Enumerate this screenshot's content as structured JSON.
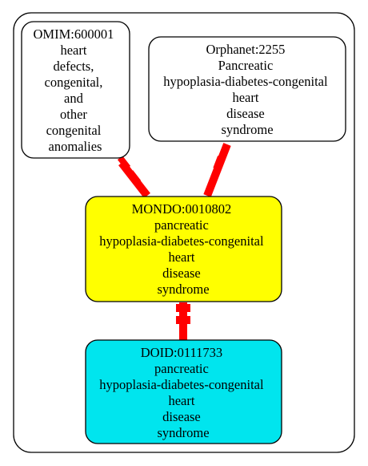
{
  "graph": {
    "nodes": [
      {
        "id": "omim",
        "lines": [
          "OMIM:600001",
          "heart",
          "defects,",
          "congenital,",
          "and",
          "other",
          "congenital",
          "anomalies"
        ],
        "fill": "#ffffff"
      },
      {
        "id": "orphanet",
        "lines": [
          "Orphanet:2255",
          "Pancreatic",
          "hypoplasia-diabetes-congenital",
          "heart",
          "disease",
          "syndrome"
        ],
        "fill": "#ffffff"
      },
      {
        "id": "mondo",
        "lines": [
          "MONDO:0010802",
          "pancreatic",
          "hypoplasia-diabetes-congenital",
          "heart",
          "disease",
          "syndrome"
        ],
        "fill": "#ffff00"
      },
      {
        "id": "doid",
        "lines": [
          "DOID:0111733",
          "pancreatic",
          "hypoplasia-diabetes-congenital",
          "heart",
          "disease",
          "syndrome"
        ],
        "fill": "#00e5ee"
      }
    ],
    "edges": [
      {
        "from": "omim",
        "to": "mondo",
        "color": "#ff0000"
      },
      {
        "from": "orphanet",
        "to": "mondo",
        "color": "#ff0000"
      },
      {
        "from": "mondo",
        "to": "doid",
        "color": "#ff0000"
      }
    ]
  }
}
